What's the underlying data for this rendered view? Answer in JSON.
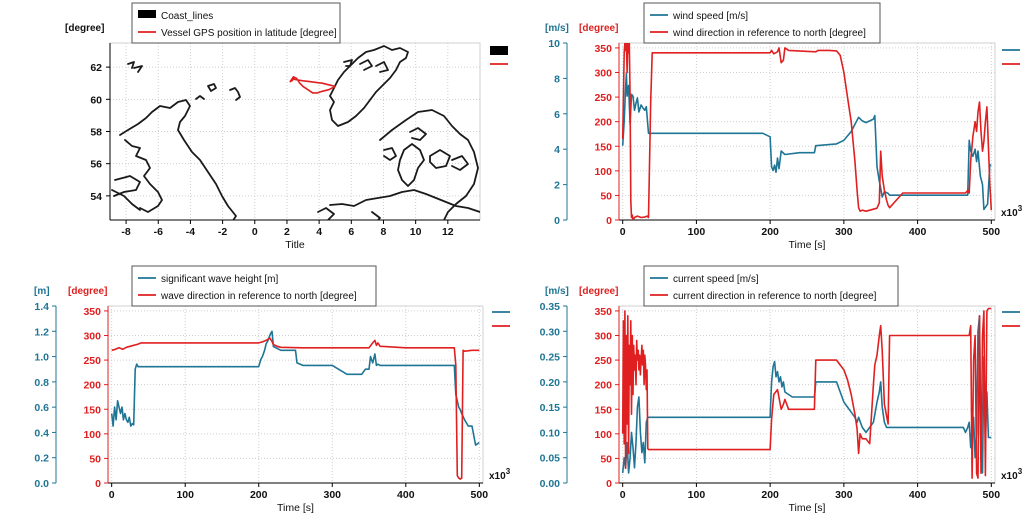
{
  "chart_data": [
    {
      "type": "line",
      "panel": "top-left",
      "title": "",
      "xlabel": "Title",
      "ylabel_left": "[degree]",
      "xlim": [
        -9,
        14
      ],
      "ylim": [
        52.5,
        63.5
      ],
      "xticks": [
        -8,
        -6,
        -4,
        -2,
        0,
        2,
        4,
        6,
        8,
        10,
        12
      ],
      "yticks": [
        54,
        56,
        58,
        60,
        62
      ],
      "legend": [
        {
          "name": "Coast_lines",
          "color": "#000000",
          "style": "block"
        },
        {
          "name": "Vessel GPS position in latitude [degree]",
          "color": "#e02020",
          "style": "line"
        }
      ],
      "series": [
        {
          "name": "Vessel GPS position in latitude [degree]",
          "color": "#e02020",
          "axis": "left",
          "x": [
            2.2,
            2.4,
            2.6,
            2.8,
            3.0,
            3.3,
            3.6,
            3.9,
            4.2,
            4.6,
            5.0,
            4.6,
            4.2,
            3.8,
            3.4,
            3.0,
            2.7,
            2.4,
            2.2,
            2.3,
            2.5
          ],
          "y": [
            61.1,
            61.4,
            61.3,
            61.0,
            60.8,
            60.6,
            60.4,
            60.4,
            60.5,
            60.6,
            60.8,
            60.9,
            61.0,
            61.05,
            61.1,
            61.15,
            61.2,
            61.25,
            61.1,
            61.15,
            61.35
          ]
        }
      ]
    },
    {
      "type": "line",
      "panel": "top-right",
      "title": "",
      "xlabel": "Time [s]",
      "ylabel_left": "[m/s]",
      "ylabel_right": "[degree]",
      "x_multiplier": "x10",
      "x_multiplier_exp": "3",
      "xlim": [
        -5,
        505
      ],
      "ylim_left": [
        0,
        10
      ],
      "ylim_right": [
        0,
        360
      ],
      "xticks": [
        0,
        100,
        200,
        300,
        400,
        500
      ],
      "yticks_left": [
        0,
        2,
        4,
        6,
        8,
        10
      ],
      "yticks_right": [
        0,
        50,
        100,
        150,
        200,
        250,
        300,
        350
      ],
      "legend": [
        {
          "name": "wind speed [m/s]",
          "color": "#1f7595"
        },
        {
          "name": "wind direction in reference to north  [degree]",
          "color": "#e02020"
        }
      ],
      "series": [
        {
          "name": "wind speed [m/s]",
          "color": "#1f7595",
          "axis": "left",
          "x": [
            0,
            2,
            4,
            5,
            6,
            8,
            10,
            12,
            14,
            16,
            18,
            20,
            22,
            25,
            28,
            30,
            32,
            35,
            40,
            60,
            100,
            150,
            190,
            200,
            202,
            204,
            206,
            208,
            210,
            212,
            215,
            220,
            240,
            260,
            262,
            290,
            300,
            310,
            315,
            320,
            325,
            330,
            340,
            342,
            345,
            348,
            350,
            352,
            355,
            360,
            362,
            380,
            400,
            440,
            460,
            465,
            468,
            470,
            472,
            475,
            478,
            480,
            482,
            485,
            488,
            490,
            495,
            498,
            500
          ],
          "y": [
            4.2,
            5.6,
            7.5,
            8.3,
            7.0,
            7.6,
            5.4,
            7.1,
            7.0,
            6.2,
            6.6,
            6.9,
            6.1,
            6.5,
            6.3,
            6.2,
            6.4,
            4.9,
            4.9,
            4.9,
            4.9,
            4.9,
            4.9,
            4.7,
            3.0,
            2.8,
            3.1,
            2.7,
            3.5,
            2.9,
            3.9,
            3.7,
            3.8,
            3.8,
            4.2,
            4.3,
            4.5,
            5.0,
            5.4,
            5.8,
            5.6,
            5.5,
            5.7,
            5.9,
            3.0,
            2.2,
            1.8,
            1.3,
            1.6,
            1.5,
            1.4,
            1.4,
            1.4,
            1.4,
            1.4,
            1.4,
            1.4,
            4.5,
            3.9,
            3.6,
            4.0,
            3.3,
            3.9,
            2.5,
            2.0,
            0.6,
            0.9,
            3.1,
            3.1
          ]
        },
        {
          "name": "wind direction in reference to north  [degree]",
          "color": "#e02020",
          "axis": "right",
          "x": [
            0,
            2,
            3,
            4,
            5,
            6,
            7,
            8,
            9,
            10,
            11,
            12,
            13,
            14,
            16,
            20,
            25,
            30,
            33,
            35,
            38,
            40,
            100,
            200,
            202,
            205,
            210,
            212,
            215,
            218,
            220,
            225,
            262,
            265,
            280,
            290,
            295,
            300,
            305,
            310,
            315,
            318,
            320,
            322,
            325,
            330,
            335,
            340,
            345,
            348,
            350,
            352,
            355,
            358,
            360,
            362,
            380,
            440,
            460,
            465,
            468,
            470,
            472,
            475,
            478,
            480,
            482,
            484,
            486,
            488,
            490,
            492,
            494,
            496,
            498,
            500
          ],
          "y": [
            165,
            340,
            360,
            345,
            360,
            300,
            360,
            340,
            360,
            250,
            40,
            5,
            10,
            0,
            5,
            8,
            5,
            6,
            8,
            5,
            240,
            340,
            340,
            340,
            345,
            338,
            342,
            350,
            320,
            325,
            350,
            345,
            342,
            345,
            345,
            344,
            335,
            300,
            250,
            200,
            120,
            60,
            25,
            18,
            20,
            18,
            20,
            22,
            24,
            35,
            140,
            90,
            60,
            40,
            30,
            25,
            55,
            55,
            55,
            55,
            60,
            55,
            120,
            170,
            200,
            180,
            220,
            240,
            180,
            140,
            160,
            200,
            230,
            150,
            75,
            20
          ]
        }
      ]
    },
    {
      "type": "line",
      "panel": "bottom-left",
      "title": "",
      "xlabel": "Time [s]",
      "ylabel_left": "[m]",
      "ylabel_right": "[degree]",
      "x_multiplier": "x10",
      "x_multiplier_exp": "3",
      "xlim": [
        -5,
        505
      ],
      "ylim_left": [
        0,
        1.4
      ],
      "ylim_right": [
        0,
        360
      ],
      "xticks": [
        0,
        100,
        200,
        300,
        400,
        500
      ],
      "yticks_left": [
        0.0,
        0.2,
        0.4,
        0.6,
        0.8,
        1.0,
        1.2,
        1.4
      ],
      "yticks_right": [
        0,
        50,
        100,
        150,
        200,
        250,
        300,
        350
      ],
      "legend": [
        {
          "name": "significant wave height [m]",
          "color": "#1f7595"
        },
        {
          "name": "wave direction in reference to north  [degree]",
          "color": "#e02020"
        }
      ],
      "series": [
        {
          "name": "significant wave height [m]",
          "color": "#1f7595",
          "axis": "left",
          "x": [
            0,
            2,
            4,
            6,
            8,
            10,
            12,
            14,
            16,
            18,
            20,
            22,
            24,
            26,
            28,
            30,
            32,
            34,
            36,
            40,
            100,
            150,
            200,
            203,
            205,
            208,
            210,
            212,
            214,
            216,
            218,
            220,
            230,
            250,
            252,
            260,
            290,
            300,
            320,
            330,
            340,
            345,
            350,
            352,
            355,
            358,
            360,
            362,
            365,
            400,
            440,
            460,
            462,
            464,
            466,
            468,
            470,
            472,
            474,
            476,
            480,
            485,
            490,
            495,
            500
          ],
          "y": [
            0.55,
            0.45,
            0.6,
            0.5,
            0.65,
            0.6,
            0.55,
            0.6,
            0.5,
            0.55,
            0.5,
            0.48,
            0.52,
            0.45,
            0.47,
            0.46,
            0.9,
            0.94,
            0.92,
            0.92,
            0.92,
            0.92,
            0.92,
            0.98,
            1.0,
            1.05,
            1.1,
            1.12,
            1.15,
            1.18,
            1.2,
            1.08,
            1.05,
            1.05,
            0.95,
            0.93,
            0.93,
            0.93,
            0.86,
            0.86,
            0.86,
            0.9,
            0.9,
            1.0,
            0.95,
            1.02,
            0.93,
            0.94,
            0.93,
            0.93,
            0.93,
            0.93,
            0.93,
            0.93,
            0.93,
            0.7,
            0.65,
            0.6,
            0.58,
            0.55,
            0.5,
            0.45,
            0.45,
            0.3,
            0.32
          ]
        },
        {
          "name": "wave direction in reference to north  [degree]",
          "color": "#e02020",
          "axis": "right",
          "x": [
            0,
            5,
            10,
            15,
            20,
            25,
            30,
            35,
            40,
            100,
            200,
            205,
            210,
            215,
            218,
            220,
            225,
            230,
            260,
            300,
            350,
            355,
            358,
            360,
            362,
            365,
            400,
            440,
            460,
            462,
            464,
            466,
            468,
            470,
            472,
            474,
            476,
            478,
            480,
            490,
            500
          ],
          "y": [
            270,
            272,
            275,
            272,
            276,
            278,
            280,
            282,
            285,
            285,
            285,
            287,
            290,
            295,
            288,
            282,
            278,
            276,
            275,
            275,
            275,
            285,
            290,
            280,
            285,
            278,
            275,
            275,
            275,
            275,
            275,
            275,
            240,
            15,
            10,
            8,
            10,
            270,
            268,
            270,
            270
          ]
        }
      ]
    },
    {
      "type": "line",
      "panel": "bottom-right",
      "title": "",
      "xlabel": "Time [s]",
      "ylabel_left": "[m/s]",
      "ylabel_right": "[degree]",
      "x_multiplier": "x10",
      "x_multiplier_exp": "3",
      "xlim": [
        -5,
        505
      ],
      "ylim_left": [
        0,
        0.35
      ],
      "ylim_right": [
        0,
        360
      ],
      "xticks": [
        0,
        100,
        200,
        300,
        400,
        500
      ],
      "yticks_left": [
        0.0,
        0.05,
        0.1,
        0.15,
        0.2,
        0.25,
        0.3,
        0.35
      ],
      "yticks_right": [
        0,
        50,
        100,
        150,
        200,
        250,
        300,
        350
      ],
      "legend": [
        {
          "name": "current speed [m/s]",
          "color": "#1f7595"
        },
        {
          "name": "current direction in reference to north  [degree]",
          "color": "#e02020"
        }
      ],
      "series": [
        {
          "name": "current speed [m/s]",
          "color": "#1f7595",
          "axis": "left",
          "x": [
            0,
            2,
            4,
            6,
            8,
            10,
            12,
            14,
            16,
            18,
            20,
            22,
            24,
            26,
            28,
            30,
            32,
            34,
            36,
            40,
            100,
            150,
            200,
            202,
            204,
            206,
            208,
            210,
            212,
            214,
            216,
            218,
            220,
            230,
            260,
            262,
            290,
            300,
            310,
            315,
            318,
            320,
            325,
            330,
            340,
            345,
            348,
            350,
            352,
            355,
            358,
            360,
            365,
            400,
            440,
            460,
            462,
            465,
            468,
            470,
            472,
            474,
            476,
            478,
            480,
            482,
            484,
            486,
            488,
            490,
            492,
            494,
            496,
            498,
            500
          ],
          "y": [
            0.02,
            0.05,
            0.03,
            0.08,
            0.02,
            0.05,
            0.1,
            0.07,
            0.03,
            0.08,
            0.15,
            0.17,
            0.1,
            0.06,
            0.08,
            0.04,
            0.12,
            0.13,
            0.13,
            0.13,
            0.13,
            0.13,
            0.13,
            0.2,
            0.23,
            0.24,
            0.21,
            0.22,
            0.2,
            0.21,
            0.19,
            0.2,
            0.18,
            0.17,
            0.17,
            0.2,
            0.2,
            0.16,
            0.14,
            0.13,
            0.12,
            0.13,
            0.11,
            0.1,
            0.12,
            0.16,
            0.18,
            0.2,
            0.15,
            0.12,
            0.11,
            0.11,
            0.11,
            0.11,
            0.11,
            0.11,
            0.11,
            0.1,
            0.11,
            0.12,
            0.07,
            0.11,
            0.13,
            0.05,
            0.1,
            0.3,
            0.33,
            0.05,
            0.02,
            0.25,
            0.08,
            0.18,
            0.09,
            0.09,
            0.09
          ]
        },
        {
          "name": "current direction in reference to north  [degree]",
          "color": "#e02020",
          "axis": "right",
          "x": [
            0,
            1,
            2,
            3,
            4,
            5,
            6,
            7,
            8,
            9,
            10,
            11,
            12,
            13,
            14,
            15,
            16,
            17,
            18,
            19,
            20,
            21,
            22,
            23,
            24,
            25,
            26,
            27,
            28,
            29,
            30,
            31,
            32,
            33,
            34,
            35,
            36,
            38,
            40,
            100,
            200,
            202,
            205,
            210,
            215,
            218,
            220,
            225,
            230,
            260,
            262,
            265,
            290,
            295,
            300,
            305,
            310,
            315,
            318,
            320,
            322,
            325,
            330,
            335,
            340,
            342,
            345,
            348,
            350,
            352,
            355,
            360,
            362,
            380,
            440,
            470,
            472,
            474,
            476,
            478,
            480,
            482,
            484,
            486,
            488,
            490,
            492,
            494,
            496,
            498,
            500
          ],
          "y": [
            100,
            330,
            80,
            350,
            30,
            300,
            120,
            340,
            60,
            280,
            200,
            330,
            140,
            300,
            180,
            280,
            230,
            260,
            200,
            290,
            250,
            270,
            230,
            260,
            220,
            250,
            280,
            240,
            270,
            200,
            260,
            240,
            190,
            230,
            70,
            68,
            68,
            68,
            68,
            68,
            68,
            130,
            180,
            190,
            150,
            160,
            170,
            150,
            150,
            150,
            250,
            250,
            250,
            240,
            230,
            210,
            180,
            140,
            110,
            60,
            100,
            90,
            90,
            80,
            200,
            240,
            260,
            300,
            320,
            270,
            160,
            120,
            300,
            300,
            300,
            300,
            320,
            10,
            250,
            300,
            20,
            10,
            340,
            20,
            300,
            350,
            15,
            350,
            355,
            355,
            355
          ]
        }
      ]
    }
  ]
}
